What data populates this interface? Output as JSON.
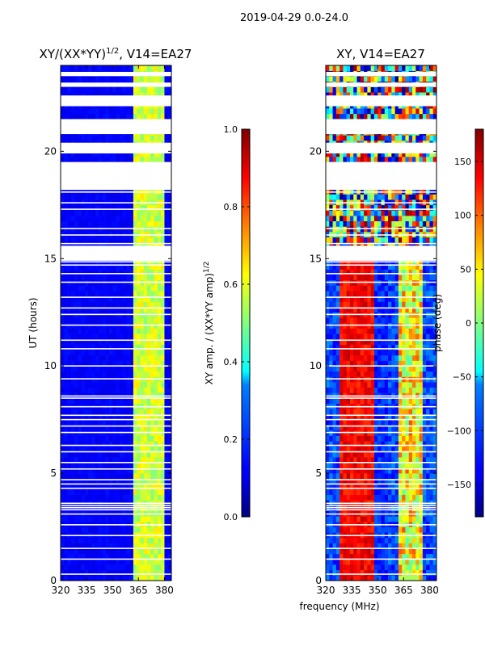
{
  "figure": {
    "suptitle": "2019-04-29 0.0-24.0",
    "xlabel": "frequency (MHz)"
  },
  "chart_data": [
    {
      "type": "heatmap",
      "title": "XY/(XX*YY)¹ᐟ², V14=EA27",
      "title_main": "XY/(XX*YY)",
      "title_exp": "1/2",
      "title_suffix": ", V14=EA27",
      "xlabel": "",
      "ylabel": "UT (hours)",
      "xlim": [
        320,
        384
      ],
      "ylim": [
        0,
        24
      ],
      "xticks": [
        "320",
        "335",
        "350",
        "365",
        "380"
      ],
      "xtick_values": [
        320,
        335,
        350,
        365,
        380
      ],
      "yticks": [
        "0",
        "5",
        "10",
        "15",
        "20"
      ],
      "ytick_values": [
        0,
        5,
        10,
        15,
        20
      ],
      "colorbar": {
        "label_main": "XY amp. / (XX*YY amp)",
        "label_exp": "1/2",
        "range": [
          0.0,
          1.0
        ],
        "ticks": [
          "0.0",
          "0.2",
          "0.4",
          "0.6",
          "0.8",
          "1.0"
        ],
        "tick_values": [
          0.0,
          0.2,
          0.4,
          0.6,
          0.8,
          1.0
        ],
        "colormap": "jet"
      },
      "flagged_ut_hours": [
        0.3,
        1.0,
        1.5,
        2.1,
        2.6,
        3.1,
        3.3,
        3.4,
        3.5,
        3.6,
        4.3,
        4.5,
        4.7,
        5.2,
        5.5,
        6.0,
        6.3,
        6.9,
        7.2,
        7.5,
        7.7,
        8.1,
        8.5,
        8.6,
        9.4,
        10.0,
        10.8,
        11.2,
        11.9,
        12.4,
        12.7,
        13.2,
        13.9,
        14.3,
        14.7,
        14.85,
        15.7,
        16.1,
        16.4,
        17.3,
        17.6,
        18.1
      ],
      "flagged_ut_ranges": [
        [
          14.9,
          15.6
        ],
        [
          18.2,
          19.5
        ],
        [
          19.9,
          20.4
        ],
        [
          20.8,
          21.5
        ],
        [
          22.1,
          22.6
        ],
        [
          23.0,
          23.2
        ],
        [
          23.5,
          23.7
        ]
      ],
      "bright_channel_mhz": [
        364,
        366,
        368,
        371,
        374,
        377,
        379
      ],
      "background_level": 0.1,
      "bright_level": 0.5
    },
    {
      "type": "heatmap",
      "title": "XY, V14=EA27",
      "xlabel": "",
      "ylabel": "",
      "xlim": [
        320,
        384
      ],
      "ylim": [
        0,
        24
      ],
      "xticks": [
        "320",
        "335",
        "350",
        "365",
        "380"
      ],
      "xtick_values": [
        320,
        335,
        350,
        365,
        380
      ],
      "yticks": [
        "0",
        "5",
        "10",
        "15",
        "20"
      ],
      "ytick_values": [
        0,
        5,
        10,
        15,
        20
      ],
      "colorbar": {
        "label": "phase (deg)",
        "range": [
          -180,
          180
        ],
        "ticks": [
          "−150",
          "−100",
          "−50",
          "0",
          "50",
          "100",
          "150"
        ],
        "tick_values": [
          -150,
          -100,
          -50,
          0,
          50,
          100,
          150
        ],
        "colormap": "jet"
      },
      "flagged_ut_hours": [
        0.3,
        1.0,
        1.5,
        2.1,
        2.6,
        3.1,
        3.3,
        3.4,
        3.5,
        3.6,
        4.3,
        4.5,
        4.7,
        5.2,
        5.5,
        6.0,
        6.3,
        6.9,
        7.2,
        7.5,
        7.7,
        8.1,
        8.5,
        8.6,
        9.4,
        10.0,
        10.8,
        11.2,
        11.9,
        12.4,
        12.7,
        13.2,
        13.9,
        14.3,
        14.7,
        14.85,
        15.7,
        16.1,
        16.4,
        17.3,
        17.6,
        18.1
      ],
      "flagged_ut_ranges": [
        [
          14.9,
          15.6
        ],
        [
          18.2,
          19.5
        ],
        [
          19.9,
          20.4
        ],
        [
          20.8,
          21.5
        ],
        [
          22.1,
          22.6
        ],
        [
          23.0,
          23.2
        ],
        [
          23.5,
          23.7
        ]
      ],
      "red_band_mhz": [
        328,
        348
      ],
      "blue_band_mhz": [
        348,
        357
      ],
      "yellow_band_mhz": [
        362,
        376
      ]
    }
  ]
}
